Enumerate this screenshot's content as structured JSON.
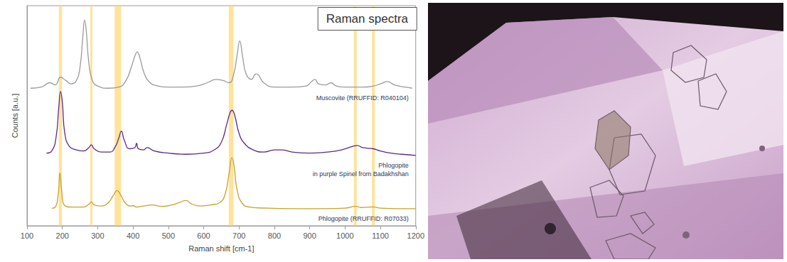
{
  "chart_data": {
    "type": "line",
    "title": "Raman spectra",
    "x_label": "Raman shift [cm-1]",
    "y_label": "Counts [a.u.]",
    "xlim": [
      100,
      1200
    ],
    "xticks": [
      100,
      200,
      300,
      400,
      500,
      600,
      700,
      800,
      900,
      1000,
      1100,
      1200
    ],
    "ylim": [
      0,
      100
    ],
    "grid": false,
    "tick_labels": "x",
    "bands": [
      [
        190,
        199
      ],
      [
        279,
        285
      ],
      [
        348,
        366
      ],
      [
        671,
        684
      ],
      [
        1025,
        1033
      ],
      [
        1076,
        1084
      ]
    ],
    "band_color": "#ffd97a",
    "series": [
      {
        "name": "Muscovite (RRUFFID: R040104)",
        "color": "#9a9a9a",
        "x": [
          110,
          140,
          165,
          180,
          195,
          210,
          225,
          240,
          250,
          258,
          263,
          268,
          275,
          285,
          300,
          330,
          360,
          380,
          395,
          405,
          412,
          420,
          430,
          445,
          470,
          500,
          540,
          580,
          610,
          635,
          655,
          672,
          685,
          695,
          702,
          710,
          720,
          735,
          748,
          755,
          770,
          800,
          850,
          890,
          905,
          915,
          925,
          945,
          960,
          975,
          1000,
          1050,
          1080,
          1100,
          1120,
          1140,
          1170,
          1190
        ],
        "values": [
          62.5,
          63,
          65,
          64,
          67.5,
          66,
          64.5,
          66,
          72,
          86,
          93.5,
          88,
          74,
          66,
          63.5,
          62.5,
          63,
          66,
          72,
          77,
          79,
          76,
          70,
          65.5,
          63.5,
          63,
          63,
          63.5,
          65,
          66.5,
          66,
          65,
          69,
          78,
          84,
          77,
          69,
          66.5,
          69,
          68.5,
          65,
          63,
          63,
          63.5,
          65.5,
          66.5,
          64.5,
          64,
          65,
          63.5,
          63,
          63,
          63.5,
          64.5,
          65.5,
          64,
          63,
          62.5
        ]
      },
      {
        "name": "Phlogopite\nin purple Spinel from Badakhshan",
        "color": "#5b2a86",
        "x": [
          155,
          170,
          182,
          190,
          195,
          200,
          207,
          220,
          240,
          260,
          275,
          282,
          290,
          310,
          335,
          350,
          360,
          367,
          375,
          390,
          405,
          410,
          415,
          430,
          440,
          460,
          500,
          550,
          600,
          630,
          650,
          665,
          675,
          680,
          688,
          700,
          715,
          740,
          770,
          800,
          820,
          850,
          900,
          950,
          990,
          1020,
          1035,
          1050,
          1080,
          1100,
          1130,
          1160,
          1200
        ],
        "values": [
          33,
          34,
          40,
          54,
          61,
          56,
          42,
          36,
          34.5,
          34,
          35.5,
          36.8,
          35,
          33.5,
          33.5,
          36,
          40,
          43,
          39,
          35,
          35.5,
          37.5,
          35,
          34.5,
          35.5,
          34,
          33,
          32.5,
          33,
          34.5,
          38,
          46,
          51.5,
          52.5,
          50,
          42,
          37.5,
          34.5,
          33.5,
          34.5,
          34.5,
          33.5,
          33,
          33.5,
          34.5,
          36,
          36.5,
          35.5,
          35,
          34,
          33,
          32.5,
          32
        ]
      },
      {
        "name": "Phlogopite (RRUFFID: R07033)",
        "color": "#c9a227",
        "x": [
          170,
          180,
          188,
          193,
          198,
          205,
          230,
          260,
          275,
          282,
          290,
          310,
          330,
          345,
          355,
          365,
          380,
          395,
          400,
          410,
          430,
          455,
          480,
          510,
          530,
          550,
          565,
          590,
          620,
          645,
          660,
          672,
          680,
          686,
          695,
          710,
          730,
          780,
          850,
          950,
          1000,
          1030,
          1045,
          1080,
          1100,
          1150,
          1200
        ],
        "values": [
          8,
          8.5,
          14,
          24,
          16,
          9.5,
          8.5,
          8.5,
          9.8,
          10.8,
          9.5,
          9,
          10.5,
          14,
          16,
          14,
          10,
          9,
          9.2,
          8.5,
          9,
          9.5,
          8.8,
          9.5,
          10.5,
          11.5,
          10,
          9,
          9.5,
          10.5,
          14,
          24,
          31,
          27,
          16,
          10,
          8.5,
          8,
          7.8,
          7.8,
          8,
          8.8,
          8.3,
          8.6,
          8,
          7.8,
          7.8
        ]
      }
    ]
  }
}
